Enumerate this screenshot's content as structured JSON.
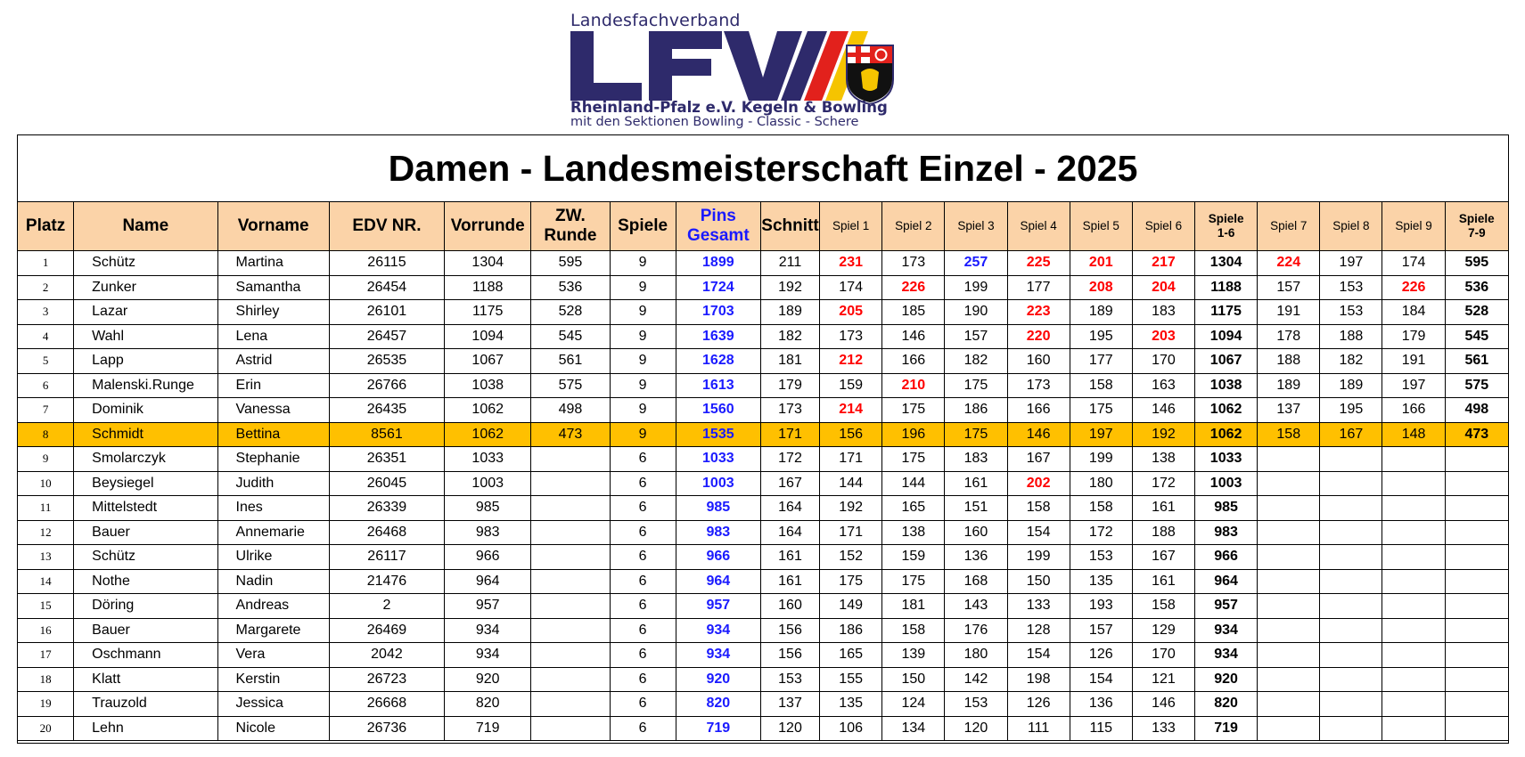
{
  "logo": {
    "top_text": "Landesfachverband",
    "mark_text": "LFV",
    "line1": "Rheinland-Pfalz e.V. Kegeln & Bowling",
    "line2": "mit den Sektionen Bowling - Classic - Schere",
    "colors": {
      "navy": "#2e2a6b",
      "red": "#e2211c",
      "yellow": "#f5c400"
    }
  },
  "title": "Damen - Landesmeisterschaft Einzel - 2025",
  "colors": {
    "header_bg": "#fbd3a8",
    "highlight_row": "#ffc000",
    "pins": "#1a1aff",
    "high_game": "#ff0000"
  },
  "columns": [
    "Platz",
    "Name",
    "Vorname",
    "EDV NR.",
    "Vorrunde",
    "ZW. Runde",
    "Spiele",
    "Pins Gesamt",
    "Schnitt",
    "Spiel 1",
    "Spiel 2",
    "Spiel 3",
    "Spiel 4",
    "Spiel 5",
    "Spiel 6",
    "Spiele 1-6",
    "Spiel 7",
    "Spiel 8",
    "Spiel 9",
    "Spiele 7-9"
  ],
  "header_labels": {
    "platz": "Platz",
    "name": "Name",
    "vorname": "Vorname",
    "edv": "EDV NR.",
    "vorrunde": "Vorrunde",
    "zw1": "ZW.",
    "zw2": "Runde",
    "spiele": "Spiele",
    "pins1": "Pins",
    "pins2": "Gesamt",
    "schnitt": "Schnitt",
    "s1": "Spiel 1",
    "s2": "Spiel 2",
    "s3": "Spiel 3",
    "s4": "Spiel 4",
    "s5": "Spiel 5",
    "s6": "Spiel 6",
    "sum16a": "Spiele",
    "sum16b": "1-6",
    "s7": "Spiel 7",
    "s8": "Spiel 8",
    "s9": "Spiel 9",
    "sum79a": "Spiele",
    "sum79b": "7-9"
  },
  "rows": [
    {
      "platz": "1",
      "name": "Schütz",
      "vorname": "Martina",
      "edv": "26115",
      "vorrunde": "1304",
      "zw": "595",
      "spiele": "9",
      "pins": "1899",
      "schnitt": "211",
      "games": [
        "231",
        "173",
        "257",
        "225",
        "201",
        "217"
      ],
      "sum16": "1304",
      "games79": [
        "224",
        "197",
        "174"
      ],
      "sum79": "595",
      "red": [
        0,
        3,
        4,
        5,
        6
      ],
      "blue": [
        2
      ],
      "highlight": false
    },
    {
      "platz": "2",
      "name": "Zunker",
      "vorname": "Samantha",
      "edv": "26454",
      "vorrunde": "1188",
      "zw": "536",
      "spiele": "9",
      "pins": "1724",
      "schnitt": "192",
      "games": [
        "174",
        "226",
        "199",
        "177",
        "208",
        "204"
      ],
      "sum16": "1188",
      "games79": [
        "157",
        "153",
        "226"
      ],
      "sum79": "536",
      "red": [
        1,
        4,
        5,
        8
      ],
      "blue": [],
      "highlight": false
    },
    {
      "platz": "3",
      "name": "Lazar",
      "vorname": "Shirley",
      "edv": "26101",
      "vorrunde": "1175",
      "zw": "528",
      "spiele": "9",
      "pins": "1703",
      "schnitt": "189",
      "games": [
        "205",
        "185",
        "190",
        "223",
        "189",
        "183"
      ],
      "sum16": "1175",
      "games79": [
        "191",
        "153",
        "184"
      ],
      "sum79": "528",
      "red": [
        0,
        3
      ],
      "blue": [],
      "highlight": false
    },
    {
      "platz": "4",
      "name": "Wahl",
      "vorname": "Lena",
      "edv": "26457",
      "vorrunde": "1094",
      "zw": "545",
      "spiele": "9",
      "pins": "1639",
      "schnitt": "182",
      "games": [
        "173",
        "146",
        "157",
        "220",
        "195",
        "203"
      ],
      "sum16": "1094",
      "games79": [
        "178",
        "188",
        "179"
      ],
      "sum79": "545",
      "red": [
        3,
        5
      ],
      "blue": [],
      "highlight": false
    },
    {
      "platz": "5",
      "name": "Lapp",
      "vorname": "Astrid",
      "edv": "26535",
      "vorrunde": "1067",
      "zw": "561",
      "spiele": "9",
      "pins": "1628",
      "schnitt": "181",
      "games": [
        "212",
        "166",
        "182",
        "160",
        "177",
        "170"
      ],
      "sum16": "1067",
      "games79": [
        "188",
        "182",
        "191"
      ],
      "sum79": "561",
      "red": [
        0
      ],
      "blue": [],
      "highlight": false
    },
    {
      "platz": "6",
      "name": "Malenski.Runge",
      "vorname": "Erin",
      "edv": "26766",
      "vorrunde": "1038",
      "zw": "575",
      "spiele": "9",
      "pins": "1613",
      "schnitt": "179",
      "games": [
        "159",
        "210",
        "175",
        "173",
        "158",
        "163"
      ],
      "sum16": "1038",
      "games79": [
        "189",
        "189",
        "197"
      ],
      "sum79": "575",
      "red": [
        1
      ],
      "blue": [],
      "highlight": false
    },
    {
      "platz": "7",
      "name": "Dominik",
      "vorname": "Vanessa",
      "edv": "26435",
      "vorrunde": "1062",
      "zw": "498",
      "spiele": "9",
      "pins": "1560",
      "schnitt": "173",
      "games": [
        "214",
        "175",
        "186",
        "166",
        "175",
        "146"
      ],
      "sum16": "1062",
      "games79": [
        "137",
        "195",
        "166"
      ],
      "sum79": "498",
      "red": [
        0
      ],
      "blue": [],
      "highlight": false
    },
    {
      "platz": "8",
      "name": "Schmidt",
      "vorname": "Bettina",
      "edv": "8561",
      "vorrunde": "1062",
      "zw": "473",
      "spiele": "9",
      "pins": "1535",
      "schnitt": "171",
      "games": [
        "156",
        "196",
        "175",
        "146",
        "197",
        "192"
      ],
      "sum16": "1062",
      "games79": [
        "158",
        "167",
        "148"
      ],
      "sum79": "473",
      "red": [],
      "blue": [],
      "highlight": true
    },
    {
      "platz": "9",
      "name": "Smolarczyk",
      "vorname": "Stephanie",
      "edv": "26351",
      "vorrunde": "1033",
      "zw": "",
      "spiele": "6",
      "pins": "1033",
      "schnitt": "172",
      "games": [
        "171",
        "175",
        "183",
        "167",
        "199",
        "138"
      ],
      "sum16": "1033",
      "games79": [
        "",
        "",
        ""
      ],
      "sum79": "",
      "red": [],
      "blue": [],
      "highlight": false
    },
    {
      "platz": "10",
      "name": "Beysiegel",
      "vorname": "Judith",
      "edv": "26045",
      "vorrunde": "1003",
      "zw": "",
      "spiele": "6",
      "pins": "1003",
      "schnitt": "167",
      "games": [
        "144",
        "144",
        "161",
        "202",
        "180",
        "172"
      ],
      "sum16": "1003",
      "games79": [
        "",
        "",
        ""
      ],
      "sum79": "",
      "red": [
        3
      ],
      "blue": [],
      "highlight": false
    },
    {
      "platz": "11",
      "name": "Mittelstedt",
      "vorname": "Ines",
      "edv": "26339",
      "vorrunde": "985",
      "zw": "",
      "spiele": "6",
      "pins": "985",
      "schnitt": "164",
      "games": [
        "192",
        "165",
        "151",
        "158",
        "158",
        "161"
      ],
      "sum16": "985",
      "games79": [
        "",
        "",
        ""
      ],
      "sum79": "",
      "red": [],
      "blue": [],
      "highlight": false
    },
    {
      "platz": "12",
      "name": "Bauer",
      "vorname": "Annemarie",
      "edv": "26468",
      "vorrunde": "983",
      "zw": "",
      "spiele": "6",
      "pins": "983",
      "schnitt": "164",
      "games": [
        "171",
        "138",
        "160",
        "154",
        "172",
        "188"
      ],
      "sum16": "983",
      "games79": [
        "",
        "",
        ""
      ],
      "sum79": "",
      "red": [],
      "blue": [],
      "highlight": false
    },
    {
      "platz": "13",
      "name": "Schütz",
      "vorname": "Ulrike",
      "edv": "26117",
      "vorrunde": "966",
      "zw": "",
      "spiele": "6",
      "pins": "966",
      "schnitt": "161",
      "games": [
        "152",
        "159",
        "136",
        "199",
        "153",
        "167"
      ],
      "sum16": "966",
      "games79": [
        "",
        "",
        ""
      ],
      "sum79": "",
      "red": [],
      "blue": [],
      "highlight": false
    },
    {
      "platz": "14",
      "name": "Nothe",
      "vorname": "Nadin",
      "edv": "21476",
      "vorrunde": "964",
      "zw": "",
      "spiele": "6",
      "pins": "964",
      "schnitt": "161",
      "games": [
        "175",
        "175",
        "168",
        "150",
        "135",
        "161"
      ],
      "sum16": "964",
      "games79": [
        "",
        "",
        ""
      ],
      "sum79": "",
      "red": [],
      "blue": [],
      "highlight": false
    },
    {
      "platz": "15",
      "name": "Döring",
      "vorname": "Andreas",
      "edv": "2",
      "vorrunde": "957",
      "zw": "",
      "spiele": "6",
      "pins": "957",
      "schnitt": "160",
      "games": [
        "149",
        "181",
        "143",
        "133",
        "193",
        "158"
      ],
      "sum16": "957",
      "games79": [
        "",
        "",
        ""
      ],
      "sum79": "",
      "red": [],
      "blue": [],
      "highlight": false
    },
    {
      "platz": "16",
      "name": "Bauer",
      "vorname": "Margarete",
      "edv": "26469",
      "vorrunde": "934",
      "zw": "",
      "spiele": "6",
      "pins": "934",
      "schnitt": "156",
      "games": [
        "186",
        "158",
        "176",
        "128",
        "157",
        "129"
      ],
      "sum16": "934",
      "games79": [
        "",
        "",
        ""
      ],
      "sum79": "",
      "red": [],
      "blue": [],
      "highlight": false
    },
    {
      "platz": "17",
      "name": "Oschmann",
      "vorname": "Vera",
      "edv": "2042",
      "vorrunde": "934",
      "zw": "",
      "spiele": "6",
      "pins": "934",
      "schnitt": "156",
      "games": [
        "165",
        "139",
        "180",
        "154",
        "126",
        "170"
      ],
      "sum16": "934",
      "games79": [
        "",
        "",
        ""
      ],
      "sum79": "",
      "red": [],
      "blue": [],
      "highlight": false
    },
    {
      "platz": "18",
      "name": "Klatt",
      "vorname": "Kerstin",
      "edv": "26723",
      "vorrunde": "920",
      "zw": "",
      "spiele": "6",
      "pins": "920",
      "schnitt": "153",
      "games": [
        "155",
        "150",
        "142",
        "198",
        "154",
        "121"
      ],
      "sum16": "920",
      "games79": [
        "",
        "",
        ""
      ],
      "sum79": "",
      "red": [],
      "blue": [],
      "highlight": false
    },
    {
      "platz": "19",
      "name": "Trauzold",
      "vorname": "Jessica",
      "edv": "26668",
      "vorrunde": "820",
      "zw": "",
      "spiele": "6",
      "pins": "820",
      "schnitt": "137",
      "games": [
        "135",
        "124",
        "153",
        "126",
        "136",
        "146"
      ],
      "sum16": "820",
      "games79": [
        "",
        "",
        ""
      ],
      "sum79": "",
      "red": [],
      "blue": [],
      "highlight": false
    },
    {
      "platz": "20",
      "name": "Lehn",
      "vorname": "Nicole",
      "edv": "26736",
      "vorrunde": "719",
      "zw": "",
      "spiele": "6",
      "pins": "719",
      "schnitt": "120",
      "games": [
        "106",
        "134",
        "120",
        "111",
        "115",
        "133"
      ],
      "sum16": "719",
      "games79": [
        "",
        "",
        ""
      ],
      "sum79": "",
      "red": [],
      "blue": [],
      "highlight": false
    }
  ]
}
